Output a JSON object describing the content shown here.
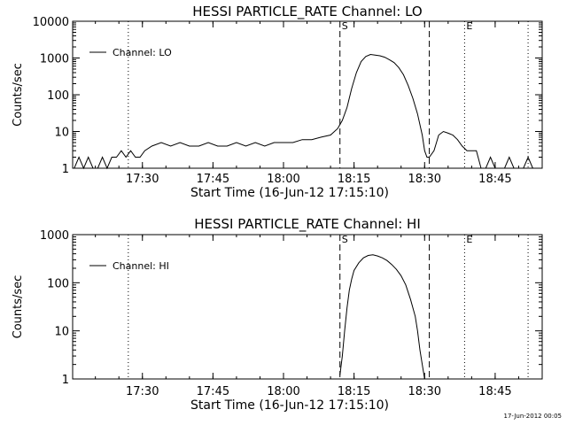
{
  "chart_data": [
    {
      "type": "line",
      "title": "HESSI PARTICLE_RATE Channel: LO",
      "xlabel": "Start Time (16-Jun-12 17:15:10)",
      "ylabel": "Counts/sec",
      "y_scale": "log",
      "ylim": [
        1,
        10000
      ],
      "xlim": [
        "17:15:10",
        "18:55:00"
      ],
      "xticks": [
        "17:30",
        "17:45",
        "18:00",
        "18:15",
        "18:30",
        "18:45"
      ],
      "yticks": [
        "1",
        "10",
        "100",
        "1000",
        "10000"
      ],
      "legend": {
        "placement": "top-left",
        "entries": [
          "Channel: LO"
        ]
      },
      "markers": [
        {
          "time": "18:12:00",
          "style": "dashed",
          "label": "S"
        },
        {
          "time": "18:31:00",
          "style": "dashed",
          "label": ""
        },
        {
          "time": "18:38:30",
          "style": "dotted",
          "label": "E"
        },
        {
          "time": "18:52:00",
          "style": "dotted",
          "label": ""
        },
        {
          "time": "17:27:00",
          "style": "dotted",
          "label": ""
        }
      ],
      "series": [
        {
          "name": "Channel: LO",
          "x": [
            "17:15:30",
            "17:16:30",
            "17:17:30",
            "17:18:30",
            "17:19:30",
            "17:20:30",
            "17:21:30",
            "17:22:30",
            "17:23:30",
            "17:24:30",
            "17:25:30",
            "17:26:30",
            "17:27:30",
            "17:28:30",
            "17:29:30",
            "17:30:30",
            "17:32:00",
            "17:34:00",
            "17:36:00",
            "17:38:00",
            "17:40:00",
            "17:42:00",
            "17:44:00",
            "17:46:00",
            "17:48:00",
            "17:50:00",
            "17:52:00",
            "17:54:00",
            "17:56:00",
            "17:58:00",
            "18:00:00",
            "18:02:00",
            "18:04:00",
            "18:06:00",
            "18:08:00",
            "18:10:00",
            "18:11:30",
            "18:12:30",
            "18:13:30",
            "18:14:30",
            "18:15:30",
            "18:16:30",
            "18:17:30",
            "18:18:30",
            "18:19:30",
            "18:20:30",
            "18:21:30",
            "18:22:30",
            "18:23:30",
            "18:24:30",
            "18:25:30",
            "18:26:30",
            "18:27:30",
            "18:28:30",
            "18:29:30",
            "18:30:00",
            "18:30:30",
            "18:31:00",
            "18:32:00",
            "18:33:00",
            "18:34:00",
            "18:35:00",
            "18:36:00",
            "18:37:00",
            "18:38:00",
            "18:39:00",
            "18:40:00",
            "18:41:00",
            "18:42:00",
            "18:43:00",
            "18:44:00",
            "18:45:00",
            "18:46:00",
            "18:47:00",
            "18:48:00",
            "18:49:00",
            "18:50:00",
            "18:51:00",
            "18:52:00",
            "18:53:00"
          ],
          "values": [
            1,
            2,
            1,
            2,
            1,
            1,
            2,
            1,
            2,
            2,
            3,
            2,
            3,
            2,
            2,
            3,
            4,
            5,
            4,
            5,
            4,
            4,
            5,
            4,
            4,
            5,
            4,
            5,
            4,
            5,
            5,
            5,
            6,
            6,
            7,
            8,
            12,
            20,
            45,
            150,
            400,
            800,
            1100,
            1250,
            1200,
            1150,
            1050,
            900,
            750,
            550,
            350,
            180,
            80,
            30,
            8,
            3,
            2,
            2,
            3,
            8,
            10,
            9,
            8,
            6,
            4,
            3,
            3,
            3,
            1,
            1,
            2,
            1,
            1,
            1,
            2,
            1,
            1,
            1,
            2,
            1
          ]
        }
      ]
    },
    {
      "type": "line",
      "title": "HESSI PARTICLE_RATE Channel: HI",
      "xlabel": "Start Time (16-Jun-12 17:15:10)",
      "ylabel": "Counts/sec",
      "y_scale": "log",
      "ylim": [
        1,
        1000
      ],
      "xlim": [
        "17:15:10",
        "18:55:00"
      ],
      "xticks": [
        "17:30",
        "17:45",
        "18:00",
        "18:15",
        "18:30",
        "18:45"
      ],
      "yticks": [
        "1",
        "10",
        "100",
        "1000"
      ],
      "legend": {
        "placement": "top-left",
        "entries": [
          "Channel: HI"
        ]
      },
      "markers": [
        {
          "time": "18:12:00",
          "style": "dashed",
          "label": "S"
        },
        {
          "time": "18:31:00",
          "style": "dashed",
          "label": ""
        },
        {
          "time": "18:38:30",
          "style": "dotted",
          "label": "E"
        },
        {
          "time": "18:52:00",
          "style": "dotted",
          "label": ""
        },
        {
          "time": "17:27:00",
          "style": "dotted",
          "label": ""
        }
      ],
      "series": [
        {
          "name": "Channel: HI",
          "x": [
            "18:12:00",
            "18:12:30",
            "18:13:00",
            "18:13:30",
            "18:14:00",
            "18:14:30",
            "18:15:00",
            "18:16:00",
            "18:17:00",
            "18:18:00",
            "18:19:00",
            "18:20:00",
            "18:21:00",
            "18:22:00",
            "18:23:00",
            "18:24:00",
            "18:25:00",
            "18:26:00",
            "18:27:00",
            "18:28:00",
            "18:28:30",
            "18:29:00",
            "18:29:30",
            "18:30:00"
          ],
          "values": [
            1.2,
            3,
            10,
            30,
            70,
            120,
            180,
            260,
            330,
            370,
            380,
            360,
            330,
            290,
            240,
            190,
            140,
            90,
            45,
            20,
            10,
            4,
            2,
            1
          ]
        }
      ]
    }
  ],
  "footer": {
    "timestamp": "17-Jun-2012 00:05"
  }
}
